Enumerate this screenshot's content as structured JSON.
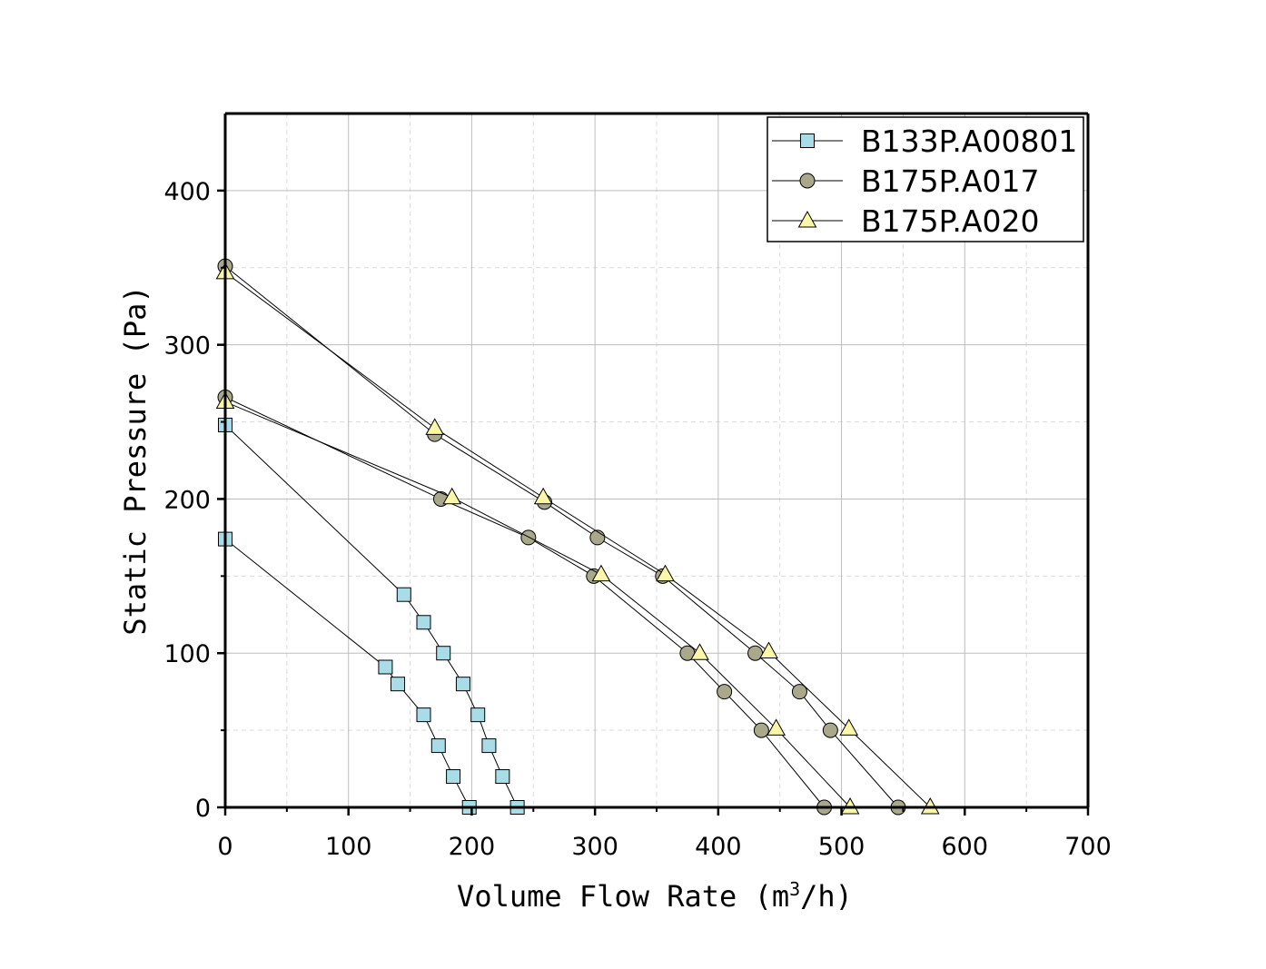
{
  "chart_data": {
    "type": "line",
    "title": "",
    "xlabel_main": "Volume Flow Rate (m",
    "xlabel_sup": "3",
    "xlabel_tail": "/h)",
    "ylabel": "Static Pressure (Pa)",
    "xlim": [
      0,
      700
    ],
    "ylim": [
      0,
      450
    ],
    "xticks": [
      0,
      100,
      200,
      300,
      400,
      500,
      600,
      700
    ],
    "yticks": [
      0,
      100,
      200,
      300,
      400
    ],
    "x_minor_step": 50,
    "y_minor_step": 50,
    "grid": true,
    "legend_position": "top-right",
    "series": [
      {
        "name": "B133P.A00801",
        "marker": "square",
        "fill": "#a8dde8",
        "curves": [
          {
            "x": [
              0,
              130,
              140,
              161,
              173,
              185,
              198
            ],
            "y": [
              174,
              91,
              80,
              60,
              40,
              20,
              0
            ]
          },
          {
            "x": [
              0,
              145,
              161,
              177,
              193,
              205,
              214,
              225,
              237
            ],
            "y": [
              248,
              138,
              120,
              100,
              80,
              60,
              40,
              20,
              0
            ]
          }
        ]
      },
      {
        "name": "B175P.A017",
        "marker": "circle",
        "fill": "#aaa88a",
        "curves": [
          {
            "x": [
              0,
              175,
              246,
              299,
              375,
              405,
              435,
              486
            ],
            "y": [
              266,
              200,
              175,
              150,
              100,
              75,
              50,
              0
            ]
          },
          {
            "x": [
              0,
              170,
              259,
              302,
              355,
              430,
              466,
              491,
              546
            ],
            "y": [
              351,
              242,
              198,
              175,
              150,
              100,
              75,
              50,
              0
            ]
          }
        ]
      },
      {
        "name": "B175P.A020",
        "marker": "triangle",
        "fill": "#fbf7a8",
        "curves": [
          {
            "x": [
              0,
              184,
              305,
              385,
              447,
              507
            ],
            "y": [
              263,
              201,
              151,
              100,
              51,
              0
            ]
          },
          {
            "x": [
              0,
              170,
              258,
              357,
              441,
              506,
              572
            ],
            "y": [
              347,
              246,
              201,
              151,
              101,
              51,
              0
            ]
          }
        ]
      }
    ]
  }
}
